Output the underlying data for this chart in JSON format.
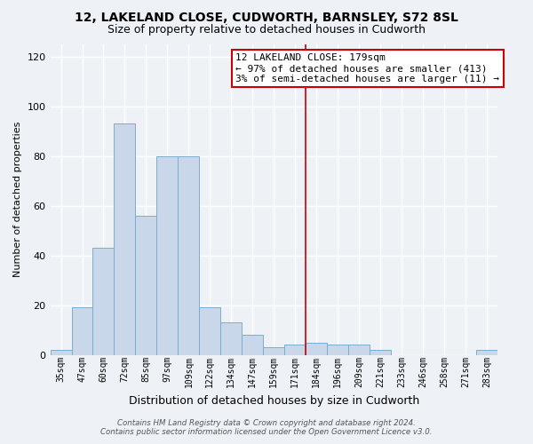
{
  "title": "12, LAKELAND CLOSE, CUDWORTH, BARNSLEY, S72 8SL",
  "subtitle": "Size of property relative to detached houses in Cudworth",
  "xlabel": "Distribution of detached houses by size in Cudworth",
  "ylabel": "Number of detached properties",
  "bar_labels": [
    "35sqm",
    "47sqm",
    "60sqm",
    "72sqm",
    "85sqm",
    "97sqm",
    "109sqm",
    "122sqm",
    "134sqm",
    "147sqm",
    "159sqm",
    "171sqm",
    "184sqm",
    "196sqm",
    "209sqm",
    "221sqm",
    "233sqm",
    "246sqm",
    "258sqm",
    "271sqm",
    "283sqm"
  ],
  "bar_values": [
    2,
    19,
    43,
    93,
    56,
    80,
    80,
    19,
    13,
    8,
    3,
    4,
    5,
    4,
    4,
    2,
    0,
    0,
    0,
    0,
    2
  ],
  "bar_color": "#c8d8ea",
  "bar_edge_color": "#7aadcc",
  "vline_x": 11.5,
  "vline_color": "#cc0000",
  "annotation_line1": "12 LAKELAND CLOSE: 179sqm",
  "annotation_line2": "← 97% of detached houses are smaller (413)",
  "annotation_line3": "3% of semi-detached houses are larger (11) →",
  "ylim": [
    0,
    125
  ],
  "yticks": [
    0,
    20,
    40,
    60,
    80,
    100,
    120
  ],
  "footer_line1": "Contains HM Land Registry data © Crown copyright and database right 2024.",
  "footer_line2": "Contains public sector information licensed under the Open Government Licence v3.0.",
  "bg_color": "#eef2f7",
  "grid_color": "#ffffff",
  "title_fontsize": 10,
  "subtitle_fontsize": 9,
  "annotation_fontsize": 8,
  "ylabel_fontsize": 8,
  "xlabel_fontsize": 9
}
